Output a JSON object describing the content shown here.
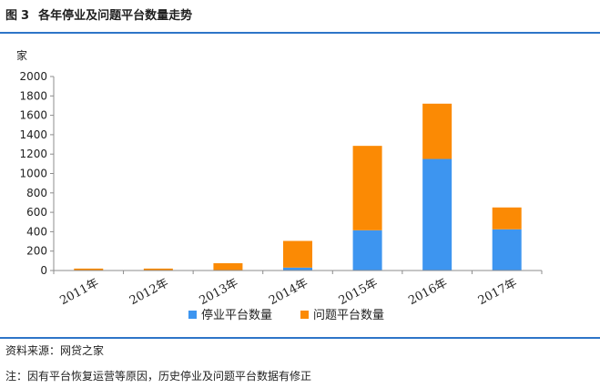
{
  "figure": {
    "label": "图",
    "number": "3",
    "title": "各年停业及问题平台数量走势"
  },
  "source": "资料来源：网贷之家",
  "note": "注：因有平台恢复运营等原因，历史停业及问题平台数据有修正",
  "chart_data": {
    "type": "bar",
    "stacked": true,
    "unit": "家",
    "categories": [
      "2011年",
      "2012年",
      "2013年",
      "2014年",
      "2015年",
      "2016年",
      "2017年"
    ],
    "series": [
      {
        "name": "停业平台数量",
        "color": "#3d95f0",
        "values": [
          0,
          0,
          0,
          30,
          415,
          1150,
          425
        ]
      },
      {
        "name": "问题平台数量",
        "color": "#fb8a04",
        "values": [
          20,
          20,
          75,
          275,
          870,
          570,
          225
        ]
      }
    ],
    "ylim": [
      0,
      2000
    ],
    "yticks": [
      0,
      200,
      400,
      600,
      800,
      1000,
      1200,
      1400,
      1600,
      1800,
      2000
    ],
    "grid": false,
    "legend": "bottom"
  }
}
